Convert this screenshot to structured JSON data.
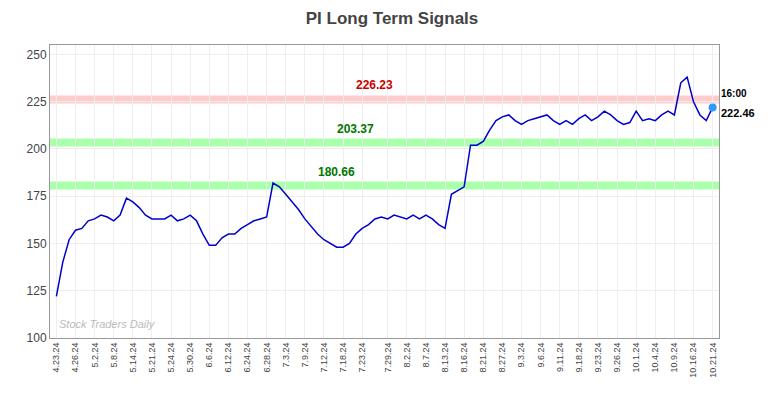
{
  "chart_data": {
    "type": "line",
    "title": "PI Long Term Signals",
    "categories": [
      "4.23.24",
      null,
      null,
      "4.26.24",
      null,
      null,
      "5.2.24",
      null,
      null,
      "5.8.24",
      null,
      null,
      "5.14.24",
      null,
      null,
      "5.21.24",
      null,
      null,
      "5.24.24",
      null,
      null,
      "5.30.24",
      null,
      null,
      "6.6.24",
      null,
      null,
      "6.12.24",
      null,
      null,
      "6.24.24",
      null,
      null,
      "6.28.24",
      null,
      null,
      "7.3.24",
      null,
      null,
      "7.9.24",
      null,
      null,
      "7.12.24",
      null,
      null,
      "7.18.24",
      null,
      null,
      "7.23.24",
      null,
      null,
      null,
      "7.29.24",
      null,
      null,
      "8.2.24",
      null,
      null,
      "8.7.24",
      null,
      null,
      "8.13.24",
      null,
      null,
      "8.16.24",
      null,
      null,
      "8.21.24",
      null,
      null,
      "8.27.24",
      null,
      null,
      "9.3.24",
      null,
      null,
      "9.6.24",
      null,
      null,
      "9.11.24",
      null,
      null,
      "9.18.24",
      null,
      null,
      "9.23.24",
      null,
      null,
      "9.26.24",
      null,
      null,
      "10.1.24",
      null,
      null,
      "10.4.24",
      null,
      null,
      "10.9.24",
      null,
      null,
      "10.16.24",
      null,
      null,
      "10.21.24"
    ],
    "values": [
      122,
      140,
      152,
      157,
      158,
      162,
      163,
      165,
      164,
      162,
      165,
      174,
      172,
      169,
      165,
      163,
      163,
      163,
      165,
      162,
      163,
      165,
      162,
      155,
      149,
      149,
      153,
      155,
      155,
      158,
      160,
      162,
      163,
      164,
      182,
      180,
      176,
      172,
      168,
      163,
      159,
      155,
      152,
      150,
      148,
      148,
      150,
      155,
      158,
      160,
      163,
      164,
      163,
      165,
      164,
      163,
      165,
      163,
      165,
      163,
      160,
      158,
      176,
      178,
      180,
      202,
      202,
      204,
      210,
      215,
      217,
      218,
      215,
      213,
      215,
      216,
      217,
      218,
      215,
      213,
      215,
      213,
      216,
      218,
      215,
      217,
      220,
      218,
      215,
      213,
      214,
      220,
      215,
      216,
      215,
      218,
      220,
      218,
      235,
      238,
      225,
      218,
      215,
      222
    ],
    "color": "#0000cc",
    "end_point_color": "#3399ff",
    "ylim": [
      100,
      255
    ],
    "yticks": [
      100,
      125,
      150,
      175,
      200,
      225,
      250
    ],
    "grid": true,
    "hlines": [
      {
        "value": 226.23,
        "label": "226.23",
        "color": "#ffcccc",
        "label_color": "#cc0000"
      },
      {
        "value": 203.37,
        "label": "203.37",
        "color": "#aaffaa",
        "label_color": "#007700"
      },
      {
        "value": 180.66,
        "label": "180.66",
        "color": "#aaffaa",
        "label_color": "#007700"
      }
    ],
    "annotations": [
      {
        "text": "16:00",
        "color": "#000000"
      },
      {
        "text": "222.46",
        "color": "#000000"
      }
    ],
    "watermark": {
      "text": "Stock Traders Daily",
      "color": "#bbbbbb"
    }
  }
}
